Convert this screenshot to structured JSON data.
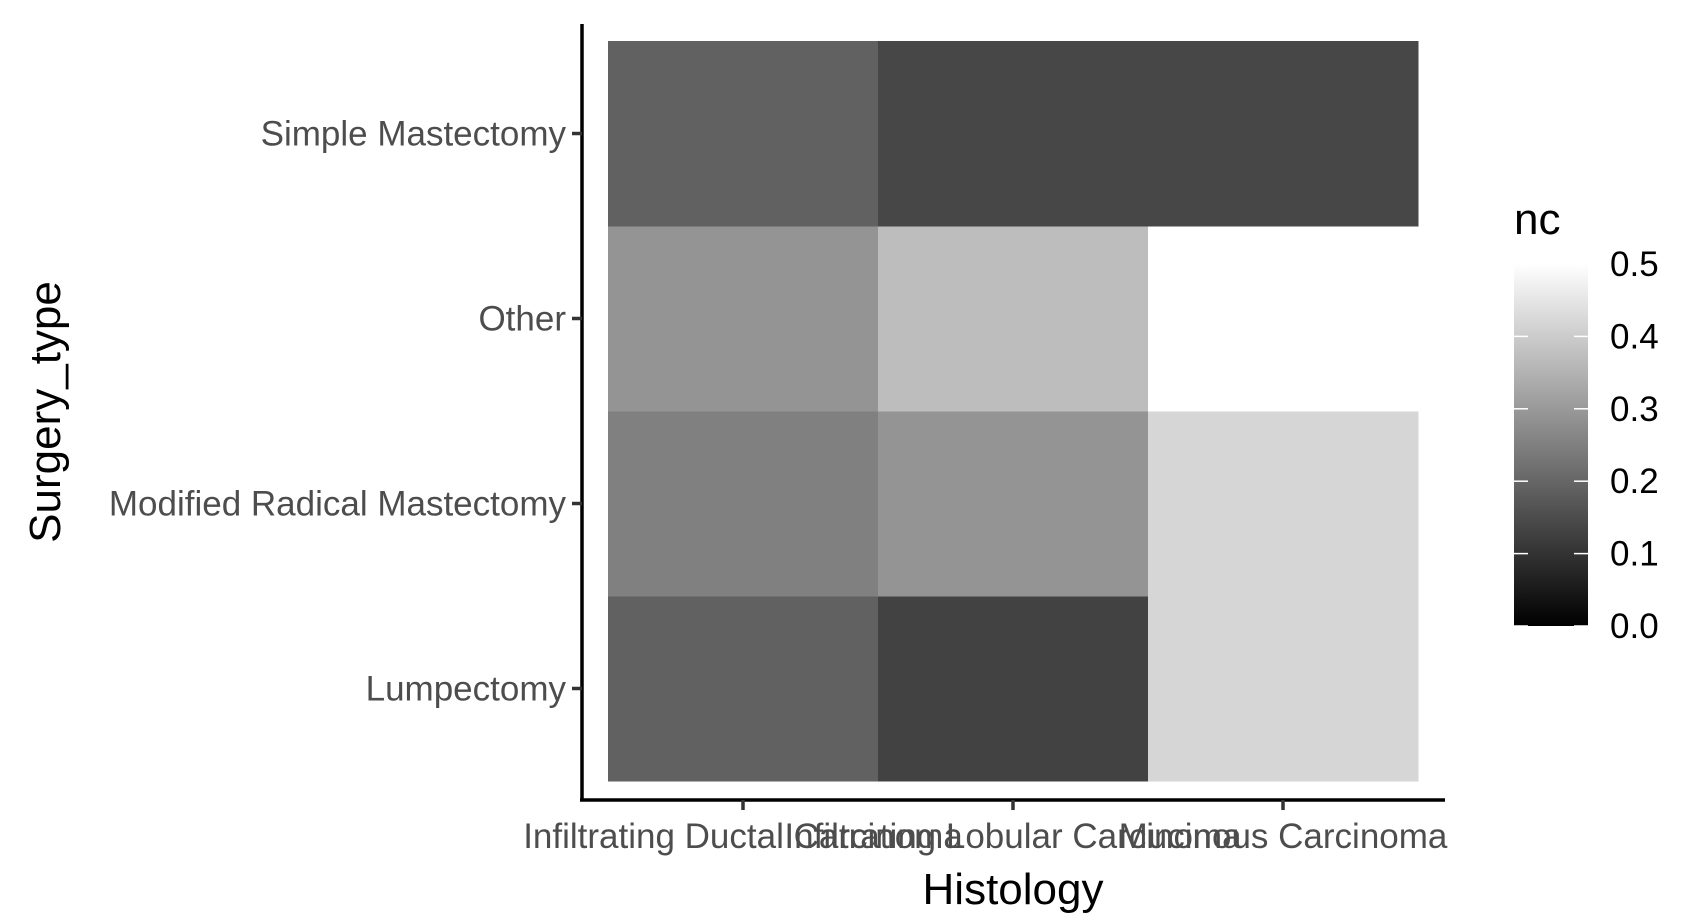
{
  "chart_data": {
    "type": "heatmap",
    "xlabel": "Histology",
    "ylabel": "Surgery_type",
    "x_categories": [
      "Infiltrating Ductal Carcinoma",
      "Infiltrating Lobular Carcinoma",
      "Mucinous Carcinoma"
    ],
    "y_categories": [
      "Lumpectomy",
      "Modified Radical Mastectomy",
      "Other",
      "Simple Mastectomy"
    ],
    "cells": [
      {
        "x": "Infiltrating Ductal Carcinoma",
        "y": "Lumpectomy",
        "value": 0.19
      },
      {
        "x": "Infiltrating Lobular Carcinoma",
        "y": "Lumpectomy",
        "value": 0.13
      },
      {
        "x": "Mucinous Carcinoma",
        "y": "Lumpectomy",
        "value": 0.42
      },
      {
        "x": "Infiltrating Ductal Carcinoma",
        "y": "Modified Radical Mastectomy",
        "value": 0.25
      },
      {
        "x": "Infiltrating Lobular Carcinoma",
        "y": "Modified Radical Mastectomy",
        "value": 0.29
      },
      {
        "x": "Mucinous Carcinoma",
        "y": "Modified Radical Mastectomy",
        "value": 0.42
      },
      {
        "x": "Infiltrating Ductal Carcinoma",
        "y": "Other",
        "value": 0.29
      },
      {
        "x": "Infiltrating Lobular Carcinoma",
        "y": "Other",
        "value": 0.37
      },
      {
        "x": "Mucinous Carcinoma",
        "y": "Other",
        "value": 0.5
      },
      {
        "x": "Infiltrating Ductal Carcinoma",
        "y": "Simple Mastectomy",
        "value": 0.19
      },
      {
        "x": "Infiltrating Lobular Carcinoma",
        "y": "Simple Mastectomy",
        "value": 0.14
      },
      {
        "x": "Mucinous Carcinoma",
        "y": "Simple Mastectomy",
        "value": 0.14
      }
    ],
    "legend": {
      "title": "nc",
      "breaks": [
        "0.0",
        "0.1",
        "0.2",
        "0.3",
        "0.4",
        "0.5"
      ],
      "range": [
        0,
        0.5
      ],
      "low_color": "#000000",
      "high_color": "#ffffff",
      "placement": "right"
    },
    "grid": false
  }
}
